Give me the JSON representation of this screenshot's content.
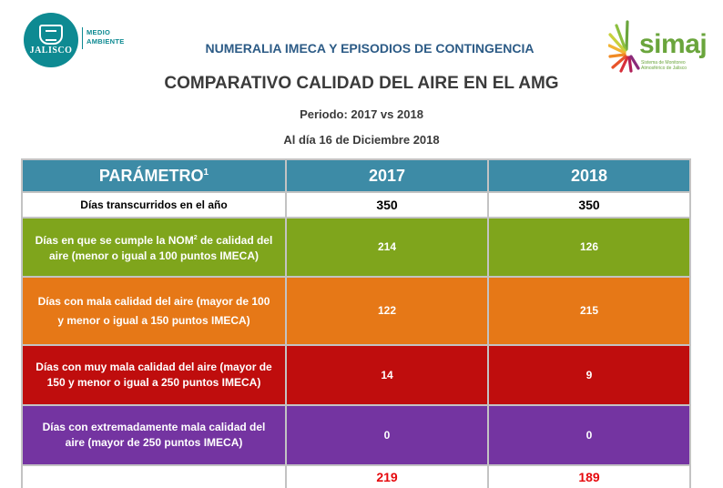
{
  "logos": {
    "jalisco": {
      "name": "JALISCO",
      "dept_line1": "MEDIO",
      "dept_line2": "AMBIENTE",
      "brand_color": "#0e8a92"
    },
    "simaj": {
      "name": "simaj",
      "tag_line1": "Sistema de Monitoreo",
      "tag_line2": "Atmosférico de Jalisco",
      "brand_color": "#6aa53c"
    }
  },
  "header": {
    "top_title": "NUMERALIA IMECA Y EPISODIOS DE CONTINGENCIA",
    "main_title": "COMPARATIVO CALIDAD DEL AIRE EN EL AMG",
    "period": "Periodo: 2017 vs 2018",
    "date": "Al día 16 de Diciembre 2018"
  },
  "table": {
    "columns": {
      "param": "PARÁMETRO",
      "param_sup": "1",
      "year_a": "2017",
      "year_b": "2018"
    },
    "rows": [
      {
        "label": "Días transcurridos en el año",
        "v2017": "350",
        "v2018": "350",
        "color": "#ffffff"
      },
      {
        "label_a": "Días en que se cumple la NOM",
        "label_sup": "2",
        "label_b": " de calidad del aire (menor o igual a 100 puntos IMECA)",
        "v2017": "214",
        "v2018": "126",
        "color": "#7fa51c"
      },
      {
        "label": "Días con mala calidad del aire (mayor de 100 y menor o igual a 150 puntos IMECA)",
        "v2017": "122",
        "v2018": "215",
        "color": "#e67817"
      },
      {
        "label": "Días con muy mala calidad del aire (mayor de 150 y menor o igual a 250 puntos IMECA)",
        "v2017": "14",
        "v2018": "9",
        "color": "#bf0d0d"
      },
      {
        "label": "Días con extremadamente mala calidad del aire (mayor de 250 puntos IMECA)",
        "v2017": "0",
        "v2018": "0",
        "color": "#7434a1"
      }
    ],
    "totals": {
      "label": "",
      "v2017": "219",
      "v2018": "189",
      "color": "#e6090d"
    }
  }
}
